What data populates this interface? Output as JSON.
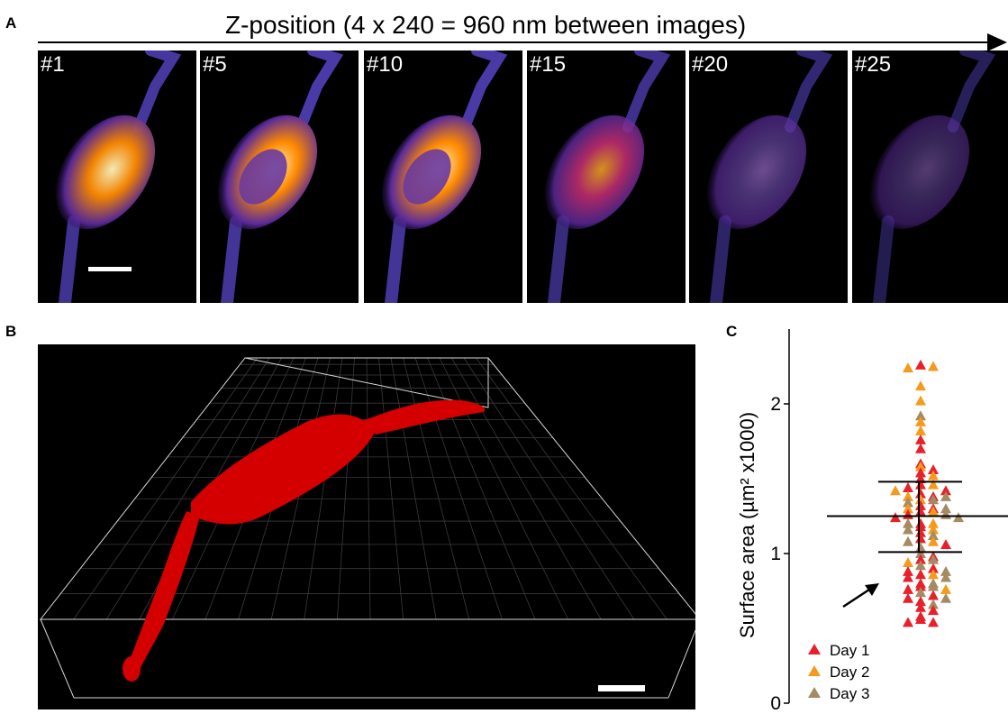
{
  "panel_labels": {
    "a": "A",
    "b": "B",
    "c": "C"
  },
  "panel_a": {
    "title": "Z-position (4 x 240 = 960 nm between images)",
    "images": [
      {
        "label": "#1",
        "intensity": 1.0
      },
      {
        "label": "#5",
        "intensity": 1.15
      },
      {
        "label": "#10",
        "intensity": 1.1
      },
      {
        "label": "#15",
        "intensity": 0.8
      },
      {
        "label": "#20",
        "intensity": 0.55
      },
      {
        "label": "#25",
        "intensity": 0.3
      }
    ]
  },
  "panel_b": {
    "box_color": "#d8d8d8",
    "grid_color": "#3a3a3a",
    "cell_color": "#d40000"
  },
  "chart_data": {
    "type": "scatter",
    "ylabel": "Surface area (µm² x1000)",
    "ylim": [
      0,
      2.5
    ],
    "yticks": [
      "0",
      "1",
      "2"
    ],
    "legend_position": "bottom-left",
    "series": [
      {
        "name": "Day 1",
        "color": "#e8202a",
        "values": [
          2.26,
          1.76,
          1.7,
          1.6,
          1.56,
          1.54,
          1.5,
          1.46,
          1.44,
          1.42,
          1.4,
          1.38,
          1.32,
          1.3,
          1.28,
          1.26,
          1.24,
          1.2,
          1.18,
          1.14,
          1.1,
          1.06,
          0.98,
          0.96,
          0.9,
          0.88,
          0.86,
          0.84,
          0.8,
          0.78,
          0.76,
          0.72,
          0.7,
          0.68,
          0.64,
          0.62,
          0.58,
          0.56,
          0.54,
          0.54
        ]
      },
      {
        "name": "Day 2",
        "color": "#f59a1d",
        "values": [
          2.25,
          2.24,
          2.12,
          2.02,
          1.88,
          1.82,
          1.58,
          1.52,
          1.46,
          1.42,
          1.38,
          1.36,
          1.3,
          1.28,
          1.2,
          1.16,
          1.08,
          0.94,
          0.86,
          0.76
        ]
      },
      {
        "name": "Day 3",
        "color": "#a68a64",
        "values": [
          1.92,
          1.38,
          1.36,
          1.34,
          1.3,
          1.26,
          1.24,
          1.2,
          1.16,
          1.12,
          1.08,
          1.04,
          1.0,
          0.96,
          0.92,
          0.88,
          0.84,
          0.8,
          0.78,
          0.74,
          0.7,
          0.66
        ]
      }
    ],
    "summary": {
      "mean": 1.25,
      "sd_upper": 1.48,
      "sd_lower": 1.01
    }
  }
}
